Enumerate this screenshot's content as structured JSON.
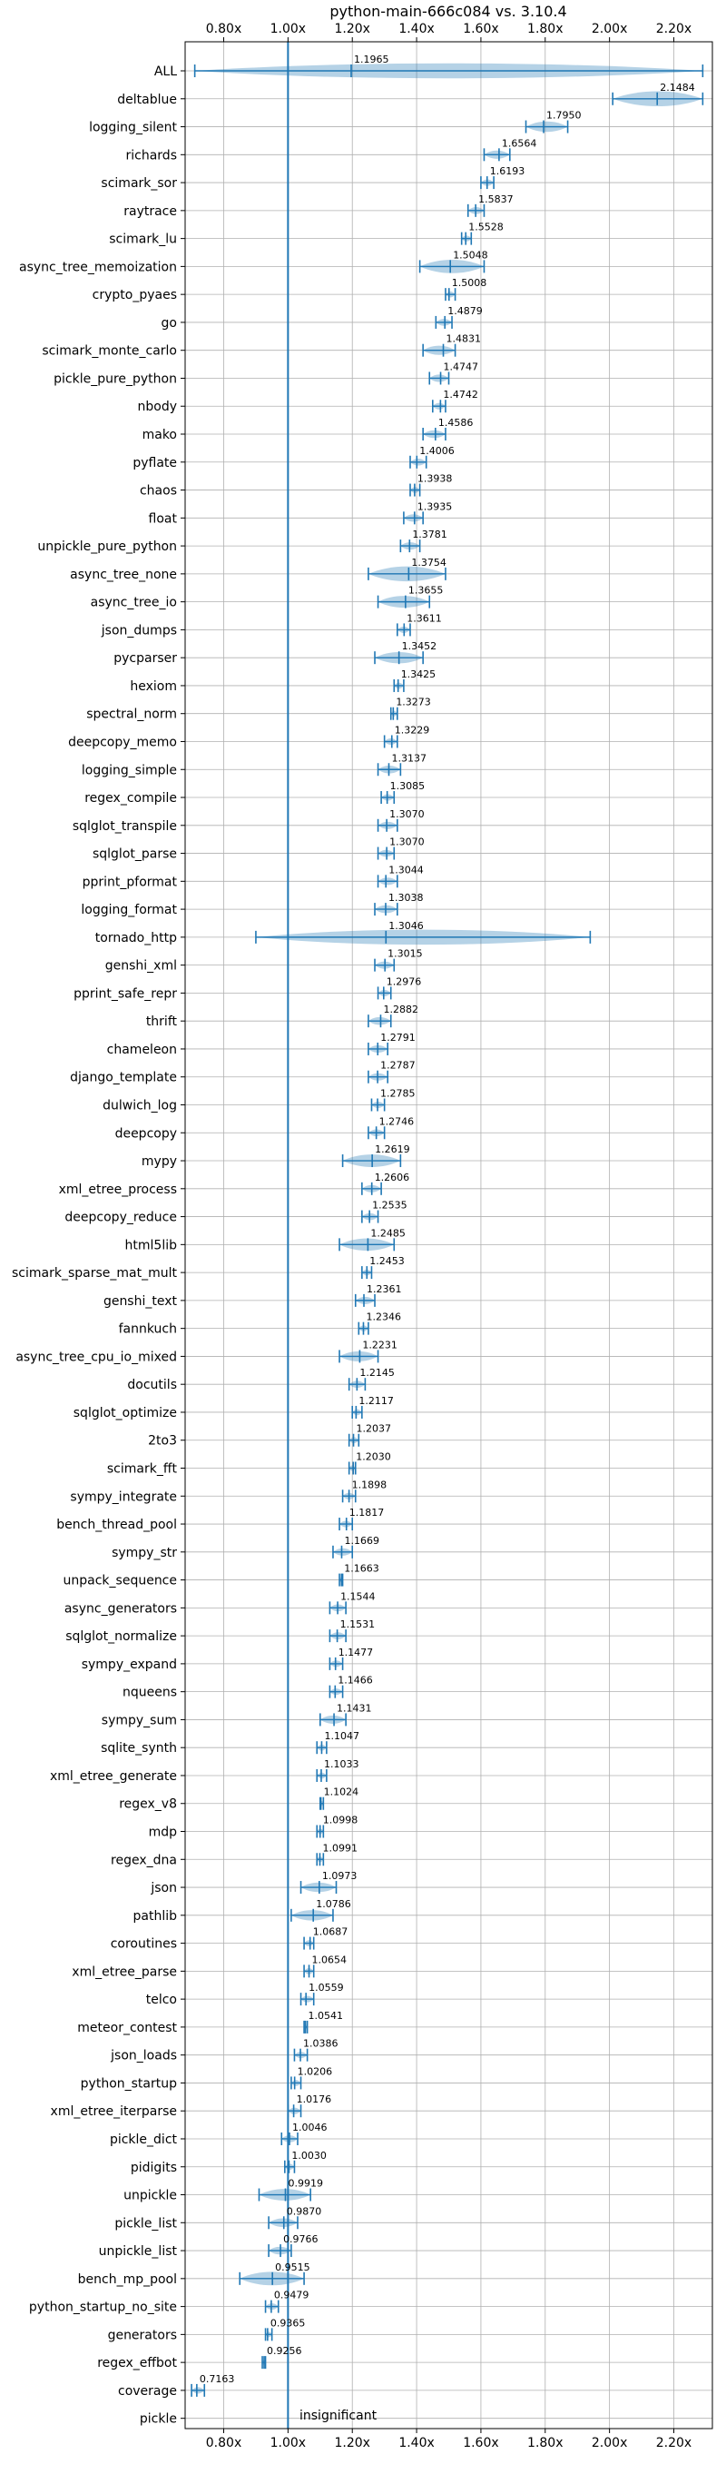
{
  "chart_data": {
    "type": "violin",
    "title": "python-main-666c084 vs. 3.10.4",
    "xlim": [
      0.68,
      2.32
    ],
    "x_ticks": [
      "0.80x",
      "1.00x",
      "1.20x",
      "1.40x",
      "1.60x",
      "1.80x",
      "2.00x",
      "2.20x"
    ],
    "x_tick_values": [
      0.8,
      1.0,
      1.2,
      1.4,
      1.6,
      1.8,
      2.0,
      2.2
    ],
    "reference_line": 1.0,
    "grid": true,
    "footer_annotation": "insignificant",
    "colors": {
      "violin": "#1f77b4",
      "axis": "#000000",
      "grid": "#b0b0b0"
    },
    "benchmarks": [
      {
        "name": "ALL",
        "value": 1.1965,
        "label": "1.1965",
        "min": 0.71,
        "max": 2.29
      },
      {
        "name": "deltablue",
        "value": 2.1484,
        "label": "2.1484",
        "min": 2.01,
        "max": 2.29
      },
      {
        "name": "logging_silent",
        "value": 1.795,
        "label": "1.7950",
        "min": 1.74,
        "max": 1.87
      },
      {
        "name": "richards",
        "value": 1.6564,
        "label": "1.6564",
        "min": 1.61,
        "max": 1.69
      },
      {
        "name": "scimark_sor",
        "value": 1.6193,
        "label": "1.6193",
        "min": 1.6,
        "max": 1.64
      },
      {
        "name": "raytrace",
        "value": 1.5837,
        "label": "1.5837",
        "min": 1.56,
        "max": 1.61
      },
      {
        "name": "scimark_lu",
        "value": 1.5528,
        "label": "1.5528",
        "min": 1.54,
        "max": 1.57
      },
      {
        "name": "async_tree_memoization",
        "value": 1.5048,
        "label": "1.5048",
        "min": 1.41,
        "max": 1.61
      },
      {
        "name": "crypto_pyaes",
        "value": 1.5008,
        "label": "1.5008",
        "min": 1.49,
        "max": 1.52
      },
      {
        "name": "go",
        "value": 1.4879,
        "label": "1.4879",
        "min": 1.46,
        "max": 1.51
      },
      {
        "name": "scimark_monte_carlo",
        "value": 1.4831,
        "label": "1.4831",
        "min": 1.42,
        "max": 1.52
      },
      {
        "name": "pickle_pure_python",
        "value": 1.4747,
        "label": "1.4747",
        "min": 1.44,
        "max": 1.5
      },
      {
        "name": "nbody",
        "value": 1.4742,
        "label": "1.4742",
        "min": 1.45,
        "max": 1.49
      },
      {
        "name": "mako",
        "value": 1.4586,
        "label": "1.4586",
        "min": 1.42,
        "max": 1.49
      },
      {
        "name": "pyflate",
        "value": 1.4006,
        "label": "1.4006",
        "min": 1.38,
        "max": 1.43
      },
      {
        "name": "chaos",
        "value": 1.3938,
        "label": "1.3938",
        "min": 1.38,
        "max": 1.41
      },
      {
        "name": "float",
        "value": 1.3935,
        "label": "1.3935",
        "min": 1.36,
        "max": 1.42
      },
      {
        "name": "unpickle_pure_python",
        "value": 1.3781,
        "label": "1.3781",
        "min": 1.35,
        "max": 1.41
      },
      {
        "name": "async_tree_none",
        "value": 1.3754,
        "label": "1.3754",
        "min": 1.25,
        "max": 1.49
      },
      {
        "name": "async_tree_io",
        "value": 1.3655,
        "label": "1.3655",
        "min": 1.28,
        "max": 1.44
      },
      {
        "name": "json_dumps",
        "value": 1.3611,
        "label": "1.3611",
        "min": 1.34,
        "max": 1.38
      },
      {
        "name": "pycparser",
        "value": 1.3452,
        "label": "1.3452",
        "min": 1.27,
        "max": 1.42
      },
      {
        "name": "hexiom",
        "value": 1.3425,
        "label": "1.3425",
        "min": 1.33,
        "max": 1.36
      },
      {
        "name": "spectral_norm",
        "value": 1.3273,
        "label": "1.3273",
        "min": 1.32,
        "max": 1.34
      },
      {
        "name": "deepcopy_memo",
        "value": 1.3229,
        "label": "1.3229",
        "min": 1.3,
        "max": 1.34
      },
      {
        "name": "logging_simple",
        "value": 1.3137,
        "label": "1.3137",
        "min": 1.28,
        "max": 1.35
      },
      {
        "name": "regex_compile",
        "value": 1.3085,
        "label": "1.3085",
        "min": 1.29,
        "max": 1.33
      },
      {
        "name": "sqlglot_transpile",
        "value": 1.307,
        "label": "1.3070",
        "min": 1.28,
        "max": 1.34
      },
      {
        "name": "sqlglot_parse",
        "value": 1.307,
        "label": "1.3070",
        "min": 1.28,
        "max": 1.33
      },
      {
        "name": "pprint_pformat",
        "value": 1.3044,
        "label": "1.3044",
        "min": 1.28,
        "max": 1.34
      },
      {
        "name": "logging_format",
        "value": 1.3038,
        "label": "1.3038",
        "min": 1.27,
        "max": 1.34
      },
      {
        "name": "tornado_http",
        "value": 1.3046,
        "label": "1.3046",
        "min": 0.9,
        "max": 1.94
      },
      {
        "name": "genshi_xml",
        "value": 1.3015,
        "label": "1.3015",
        "min": 1.27,
        "max": 1.33
      },
      {
        "name": "pprint_safe_repr",
        "value": 1.2976,
        "label": "1.2976",
        "min": 1.28,
        "max": 1.32
      },
      {
        "name": "thrift",
        "value": 1.2882,
        "label": "1.2882",
        "min": 1.25,
        "max": 1.32
      },
      {
        "name": "chameleon",
        "value": 1.2791,
        "label": "1.2791",
        "min": 1.25,
        "max": 1.31
      },
      {
        "name": "django_template",
        "value": 1.2787,
        "label": "1.2787",
        "min": 1.25,
        "max": 1.31
      },
      {
        "name": "dulwich_log",
        "value": 1.2785,
        "label": "1.2785",
        "min": 1.26,
        "max": 1.3
      },
      {
        "name": "deepcopy",
        "value": 1.2746,
        "label": "1.2746",
        "min": 1.25,
        "max": 1.3
      },
      {
        "name": "mypy",
        "value": 1.2619,
        "label": "1.2619",
        "min": 1.17,
        "max": 1.35
      },
      {
        "name": "xml_etree_process",
        "value": 1.2606,
        "label": "1.2606",
        "min": 1.23,
        "max": 1.29
      },
      {
        "name": "deepcopy_reduce",
        "value": 1.2535,
        "label": "1.2535",
        "min": 1.23,
        "max": 1.28
      },
      {
        "name": "html5lib",
        "value": 1.2485,
        "label": "1.2485",
        "min": 1.16,
        "max": 1.33
      },
      {
        "name": "scimark_sparse_mat_mult",
        "value": 1.2453,
        "label": "1.2453",
        "min": 1.23,
        "max": 1.26
      },
      {
        "name": "genshi_text",
        "value": 1.2361,
        "label": "1.2361",
        "min": 1.21,
        "max": 1.27
      },
      {
        "name": "fannkuch",
        "value": 1.2346,
        "label": "1.2346",
        "min": 1.22,
        "max": 1.25
      },
      {
        "name": "async_tree_cpu_io_mixed",
        "value": 1.2231,
        "label": "1.2231",
        "min": 1.16,
        "max": 1.28
      },
      {
        "name": "docutils",
        "value": 1.2145,
        "label": "1.2145",
        "min": 1.19,
        "max": 1.24
      },
      {
        "name": "sqlglot_optimize",
        "value": 1.2117,
        "label": "1.2117",
        "min": 1.2,
        "max": 1.23
      },
      {
        "name": "2to3",
        "value": 1.2037,
        "label": "1.2037",
        "min": 1.19,
        "max": 1.22
      },
      {
        "name": "scimark_fft",
        "value": 1.203,
        "label": "1.2030",
        "min": 1.19,
        "max": 1.21
      },
      {
        "name": "sympy_integrate",
        "value": 1.1898,
        "label": "1.1898",
        "min": 1.17,
        "max": 1.21
      },
      {
        "name": "bench_thread_pool",
        "value": 1.1817,
        "label": "1.1817",
        "min": 1.16,
        "max": 1.2
      },
      {
        "name": "sympy_str",
        "value": 1.1669,
        "label": "1.1669",
        "min": 1.14,
        "max": 1.2
      },
      {
        "name": "unpack_sequence",
        "value": 1.1663,
        "label": "1.1663",
        "min": 1.16,
        "max": 1.17
      },
      {
        "name": "async_generators",
        "value": 1.1544,
        "label": "1.1544",
        "min": 1.13,
        "max": 1.18
      },
      {
        "name": "sqlglot_normalize",
        "value": 1.1531,
        "label": "1.1531",
        "min": 1.13,
        "max": 1.18
      },
      {
        "name": "sympy_expand",
        "value": 1.1477,
        "label": "1.1477",
        "min": 1.13,
        "max": 1.17
      },
      {
        "name": "nqueens",
        "value": 1.1466,
        "label": "1.1466",
        "min": 1.13,
        "max": 1.17
      },
      {
        "name": "sympy_sum",
        "value": 1.1431,
        "label": "1.1431",
        "min": 1.1,
        "max": 1.18
      },
      {
        "name": "sqlite_synth",
        "value": 1.1047,
        "label": "1.1047",
        "min": 1.09,
        "max": 1.12
      },
      {
        "name": "xml_etree_generate",
        "value": 1.1033,
        "label": "1.1033",
        "min": 1.09,
        "max": 1.12
      },
      {
        "name": "regex_v8",
        "value": 1.1024,
        "label": "1.1024",
        "min": 1.1,
        "max": 1.11
      },
      {
        "name": "mdp",
        "value": 1.0998,
        "label": "1.0998",
        "min": 1.09,
        "max": 1.11
      },
      {
        "name": "regex_dna",
        "value": 1.0991,
        "label": "1.0991",
        "min": 1.09,
        "max": 1.11
      },
      {
        "name": "json",
        "value": 1.0973,
        "label": "1.0973",
        "min": 1.04,
        "max": 1.15
      },
      {
        "name": "pathlib",
        "value": 1.0786,
        "label": "1.0786",
        "min": 1.01,
        "max": 1.14
      },
      {
        "name": "coroutines",
        "value": 1.0687,
        "label": "1.0687",
        "min": 1.05,
        "max": 1.08
      },
      {
        "name": "xml_etree_parse",
        "value": 1.0654,
        "label": "1.0654",
        "min": 1.05,
        "max": 1.08
      },
      {
        "name": "telco",
        "value": 1.0559,
        "label": "1.0559",
        "min": 1.04,
        "max": 1.08
      },
      {
        "name": "meteor_contest",
        "value": 1.0541,
        "label": "1.0541",
        "min": 1.05,
        "max": 1.06
      },
      {
        "name": "json_loads",
        "value": 1.0386,
        "label": "1.0386",
        "min": 1.02,
        "max": 1.06
      },
      {
        "name": "python_startup",
        "value": 1.0206,
        "label": "1.0206",
        "min": 1.01,
        "max": 1.04
      },
      {
        "name": "xml_etree_iterparse",
        "value": 1.0176,
        "label": "1.0176",
        "min": 1.0,
        "max": 1.04
      },
      {
        "name": "pickle_dict",
        "value": 1.0046,
        "label": "1.0046",
        "min": 0.98,
        "max": 1.03
      },
      {
        "name": "pidigits",
        "value": 1.003,
        "label": "1.0030",
        "min": 0.99,
        "max": 1.02
      },
      {
        "name": "unpickle",
        "value": 0.9919,
        "label": "0.9919",
        "min": 0.91,
        "max": 1.07
      },
      {
        "name": "pickle_list",
        "value": 0.987,
        "label": "0.9870",
        "min": 0.94,
        "max": 1.03
      },
      {
        "name": "unpickle_list",
        "value": 0.9766,
        "label": "0.9766",
        "min": 0.94,
        "max": 1.01
      },
      {
        "name": "bench_mp_pool",
        "value": 0.9515,
        "label": "0.9515",
        "min": 0.85,
        "max": 1.05
      },
      {
        "name": "python_startup_no_site",
        "value": 0.9479,
        "label": "0.9479",
        "min": 0.93,
        "max": 0.97
      },
      {
        "name": "generators",
        "value": 0.9365,
        "label": "0.9365",
        "min": 0.93,
        "max": 0.95
      },
      {
        "name": "regex_effbot",
        "value": 0.9256,
        "label": "0.9256",
        "min": 0.92,
        "max": 0.93
      },
      {
        "name": "coverage",
        "value": 0.7163,
        "label": "0.7163",
        "min": 0.7,
        "max": 0.74
      },
      {
        "name": "pickle",
        "value": null,
        "label": "",
        "min": null,
        "max": null
      }
    ]
  }
}
